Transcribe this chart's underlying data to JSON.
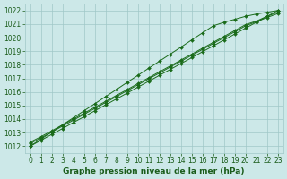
{
  "title": "Graphe pression niveau de la mer (hPa)",
  "xlabel": "Graphe pression niveau de la mer (hPa)",
  "x": [
    0,
    1,
    2,
    3,
    4,
    5,
    6,
    7,
    8,
    9,
    10,
    11,
    12,
    13,
    14,
    15,
    16,
    17,
    18,
    19,
    20,
    21,
    22,
    23
  ],
  "lines": [
    [
      1012.0,
      1012.43,
      1012.87,
      1013.3,
      1013.74,
      1014.17,
      1014.61,
      1015.04,
      1015.48,
      1015.91,
      1016.35,
      1016.78,
      1017.22,
      1017.65,
      1018.09,
      1018.52,
      1018.96,
      1019.39,
      1019.83,
      1020.26,
      1020.7,
      1021.13,
      1021.57,
      1022.0
    ],
    [
      1012.0,
      1012.52,
      1013.04,
      1013.57,
      1014.09,
      1014.61,
      1015.13,
      1015.65,
      1016.17,
      1016.7,
      1017.22,
      1017.74,
      1018.26,
      1018.78,
      1019.3,
      1019.83,
      1020.35,
      1020.87,
      1021.13,
      1021.35,
      1021.57,
      1021.74,
      1021.87,
      1022.0
    ],
    [
      1012.3,
      1012.7,
      1013.13,
      1013.57,
      1014.0,
      1014.43,
      1014.87,
      1015.3,
      1015.74,
      1016.17,
      1016.61,
      1017.04,
      1017.48,
      1017.91,
      1018.35,
      1018.78,
      1019.22,
      1019.65,
      1020.09,
      1020.52,
      1020.96,
      1021.22,
      1021.57,
      1021.87
    ],
    [
      1012.2,
      1012.61,
      1013.04,
      1013.48,
      1013.91,
      1014.35,
      1014.78,
      1015.22,
      1015.65,
      1016.09,
      1016.52,
      1016.96,
      1017.39,
      1017.83,
      1018.26,
      1018.7,
      1019.13,
      1019.57,
      1020.0,
      1020.43,
      1020.87,
      1021.17,
      1021.48,
      1021.78
    ]
  ],
  "line_color": "#1a6b1a",
  "marker": "D",
  "markersize": 2.0,
  "linewidth": 0.7,
  "ylim": [
    1011.5,
    1022.5
  ],
  "xlim": [
    -0.5,
    23.5
  ],
  "yticks": [
    1012,
    1013,
    1014,
    1015,
    1016,
    1017,
    1018,
    1019,
    1020,
    1021,
    1022
  ],
  "xticks": [
    0,
    1,
    2,
    3,
    4,
    5,
    6,
    7,
    8,
    9,
    10,
    11,
    12,
    13,
    14,
    15,
    16,
    17,
    18,
    19,
    20,
    21,
    22,
    23
  ],
  "bg_color": "#cce8e8",
  "grid_color": "#a0c8c8",
  "label_color": "#1a5c1a",
  "tick_color": "#1a5c1a",
  "xlabel_fontsize": 6.5,
  "tick_fontsize": 5.5
}
